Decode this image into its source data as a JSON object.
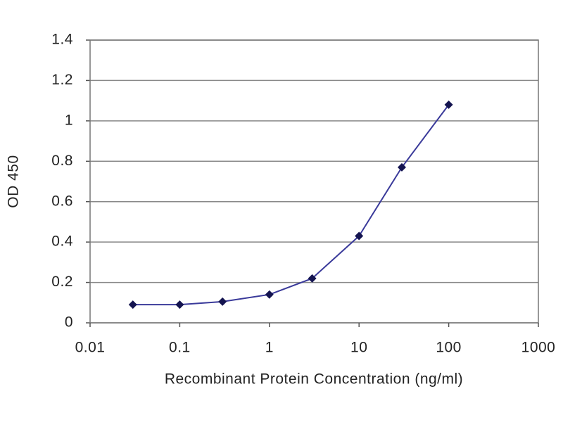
{
  "chart_data": {
    "type": "line",
    "x_label": "Recombinant Protein Concentration (ng/ml)",
    "y_label": "OD 450",
    "x": [
      0.03,
      0.1,
      0.3,
      1,
      3,
      10,
      30,
      100
    ],
    "series": [
      {
        "color": "#3a3a9a",
        "marker_color": "#141450",
        "values": [
          0.09,
          0.09,
          0.105,
          0.14,
          0.22,
          0.43,
          0.77,
          1.08
        ]
      }
    ],
    "xscale": "log",
    "xlim": [
      0.01,
      1000
    ],
    "xticks": [
      0.01,
      0.1,
      1,
      10,
      100,
      1000
    ],
    "ylim": [
      0,
      1.4
    ],
    "yticks": [
      0,
      0.2,
      0.4,
      0.6,
      0.8,
      1,
      1.2,
      1.4
    ],
    "grid": true
  }
}
